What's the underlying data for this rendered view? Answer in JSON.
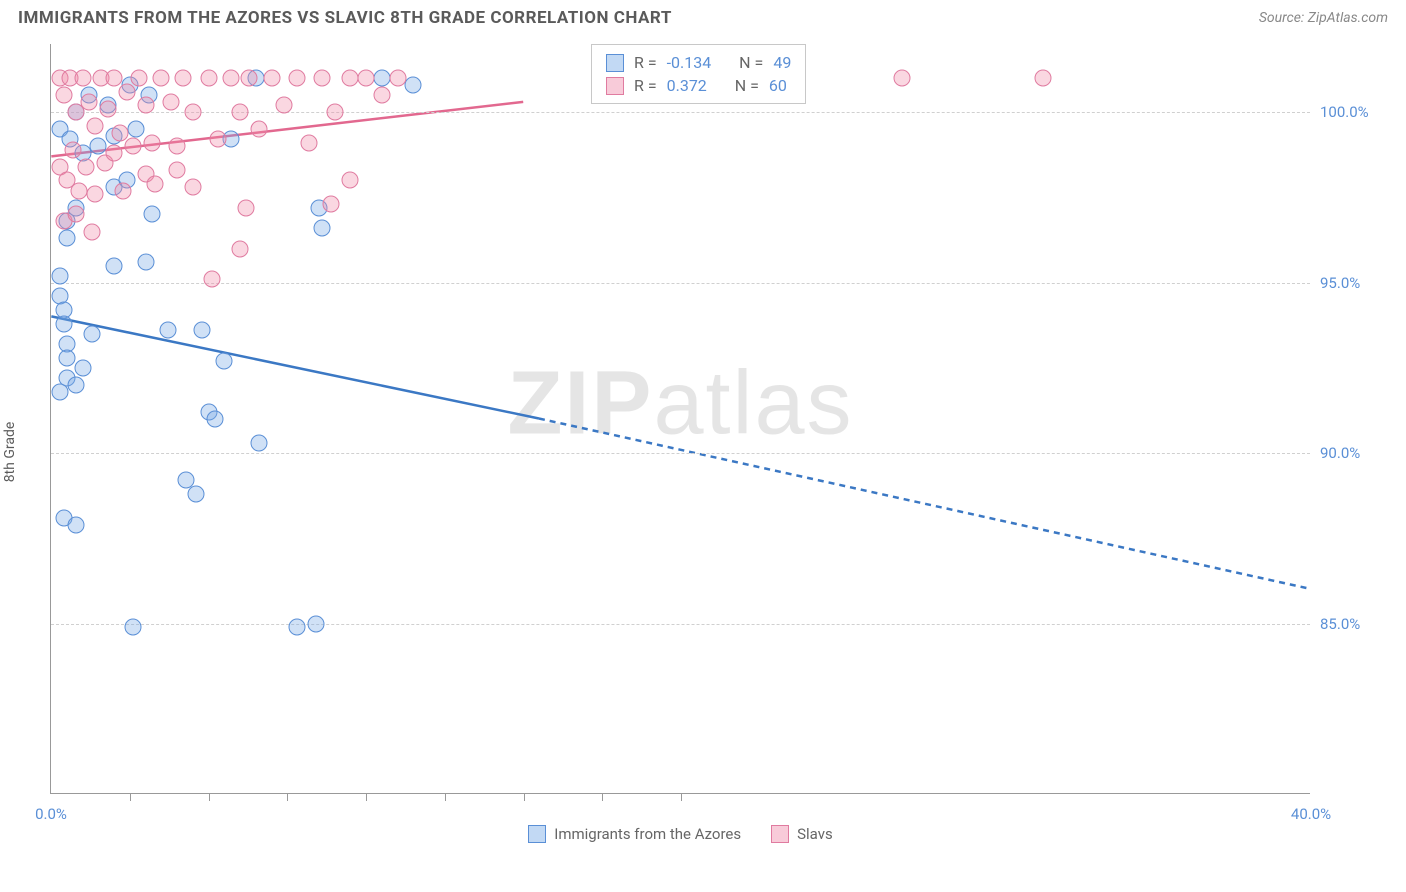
{
  "title": "IMMIGRANTS FROM THE AZORES VS SLAVIC 8TH GRADE CORRELATION CHART",
  "source": "Source: ZipAtlas.com",
  "ylabel": "8th Grade",
  "watermark_zip": "ZIP",
  "watermark_atlas": "atlas",
  "chart": {
    "type": "scatter",
    "xlim": [
      0,
      40
    ],
    "ylim": [
      80,
      102
    ],
    "xticks_major": [
      0,
      40
    ],
    "xtick_labels": [
      "0.0%",
      "40.0%"
    ],
    "xticks_minor": [
      2.5,
      5,
      7.5,
      10,
      12.5,
      15,
      17.5,
      20
    ],
    "yticks": [
      85,
      90,
      95,
      100
    ],
    "ytick_labels": [
      "85.0%",
      "90.0%",
      "95.0%",
      "100.0%"
    ],
    "grid_color": "#d0d0d0",
    "background_color": "#ffffff",
    "series": [
      {
        "name": "Immigrants from the Azores",
        "color_fill": "rgba(120,170,230,0.35)",
        "color_stroke": "#5a8fd6",
        "r_value": "-0.134",
        "n_value": "49",
        "trend": {
          "x1": 0,
          "y1": 94.0,
          "x2": 15.5,
          "y2": 91.0,
          "x2_dash": 40,
          "y2_dash": 86.0,
          "color": "#3b78c4"
        },
        "points": [
          [
            0.3,
            95.2
          ],
          [
            0.3,
            94.6
          ],
          [
            0.4,
            94.2
          ],
          [
            0.4,
            93.8
          ],
          [
            0.5,
            93.2
          ],
          [
            0.5,
            92.2
          ],
          [
            0.3,
            91.8
          ],
          [
            0.5,
            92.8
          ],
          [
            0.8,
            92.0
          ],
          [
            1.0,
            92.5
          ],
          [
            1.3,
            93.5
          ],
          [
            0.5,
            96.8
          ],
          [
            0.5,
            96.3
          ],
          [
            0.8,
            97.2
          ],
          [
            0.3,
            99.5
          ],
          [
            0.6,
            99.2
          ],
          [
            0.8,
            100.0
          ],
          [
            1.0,
            98.8
          ],
          [
            1.2,
            100.5
          ],
          [
            1.5,
            99.0
          ],
          [
            1.8,
            100.2
          ],
          [
            2.0,
            97.8
          ],
          [
            2.0,
            99.3
          ],
          [
            2.5,
            100.8
          ],
          [
            2.7,
            99.5
          ],
          [
            3.1,
            100.5
          ],
          [
            4.8,
            93.6
          ],
          [
            5.5,
            92.7
          ],
          [
            5.7,
            99.2
          ],
          [
            6.5,
            101.0
          ],
          [
            3.2,
            97.0
          ],
          [
            3.7,
            93.6
          ],
          [
            4.3,
            89.2
          ],
          [
            4.6,
            88.8
          ],
          [
            5.0,
            91.2
          ],
          [
            5.2,
            91.0
          ],
          [
            8.5,
            97.2
          ],
          [
            8.6,
            96.6
          ],
          [
            6.6,
            90.3
          ],
          [
            7.8,
            84.9
          ],
          [
            8.4,
            85.0
          ],
          [
            10.5,
            101.0
          ],
          [
            11.5,
            100.8
          ],
          [
            0.4,
            88.1
          ],
          [
            0.8,
            87.9
          ],
          [
            2.6,
            84.9
          ],
          [
            2.0,
            95.5
          ],
          [
            2.4,
            98.0
          ],
          [
            3.0,
            95.6
          ]
        ]
      },
      {
        "name": "Slavs",
        "color_fill": "rgba(240,140,170,0.35)",
        "color_stroke": "#e07ba0",
        "r_value": "0.372",
        "n_value": "60",
        "trend": {
          "x1": 0,
          "y1": 98.7,
          "x2": 15.0,
          "y2": 100.3,
          "color": "#e2688f"
        },
        "points": [
          [
            0.3,
            101.0
          ],
          [
            0.4,
            100.5
          ],
          [
            0.6,
            101.0
          ],
          [
            0.8,
            100.0
          ],
          [
            1.0,
            101.0
          ],
          [
            1.2,
            100.3
          ],
          [
            1.4,
            99.6
          ],
          [
            1.6,
            101.0
          ],
          [
            1.8,
            100.1
          ],
          [
            2.0,
            101.0
          ],
          [
            2.2,
            99.4
          ],
          [
            2.4,
            100.6
          ],
          [
            2.6,
            99.0
          ],
          [
            2.8,
            101.0
          ],
          [
            3.0,
            100.2
          ],
          [
            3.2,
            99.1
          ],
          [
            3.5,
            101.0
          ],
          [
            3.8,
            100.3
          ],
          [
            4.0,
            99.0
          ],
          [
            4.2,
            101.0
          ],
          [
            4.5,
            100.0
          ],
          [
            5.0,
            101.0
          ],
          [
            5.3,
            99.2
          ],
          [
            5.7,
            101.0
          ],
          [
            6.0,
            100.0
          ],
          [
            6.3,
            101.0
          ],
          [
            6.6,
            99.5
          ],
          [
            7.0,
            101.0
          ],
          [
            7.4,
            100.2
          ],
          [
            7.8,
            101.0
          ],
          [
            8.2,
            99.1
          ],
          [
            8.6,
            101.0
          ],
          [
            9.0,
            100.0
          ],
          [
            9.5,
            101.0
          ],
          [
            10.0,
            101.0
          ],
          [
            10.5,
            100.5
          ],
          [
            11.0,
            101.0
          ],
          [
            0.3,
            98.4
          ],
          [
            0.5,
            98.0
          ],
          [
            0.7,
            98.9
          ],
          [
            0.9,
            97.7
          ],
          [
            1.1,
            98.4
          ],
          [
            1.4,
            97.6
          ],
          [
            1.7,
            98.5
          ],
          [
            2.0,
            98.8
          ],
          [
            2.3,
            97.7
          ],
          [
            3.0,
            98.2
          ],
          [
            3.3,
            97.9
          ],
          [
            4.0,
            98.3
          ],
          [
            4.5,
            97.8
          ],
          [
            0.4,
            96.8
          ],
          [
            0.8,
            97.0
          ],
          [
            1.3,
            96.5
          ],
          [
            5.1,
            95.1
          ],
          [
            6.0,
            96.0
          ],
          [
            6.2,
            97.2
          ],
          [
            9.5,
            98.0
          ],
          [
            8.9,
            97.3
          ],
          [
            27.0,
            101.0
          ],
          [
            31.5,
            101.0
          ]
        ]
      }
    ]
  },
  "legend": {
    "series1": "Immigrants from the Azores",
    "series2": "Slavs"
  },
  "stats_labels": {
    "R": "R =",
    "N": "N ="
  }
}
